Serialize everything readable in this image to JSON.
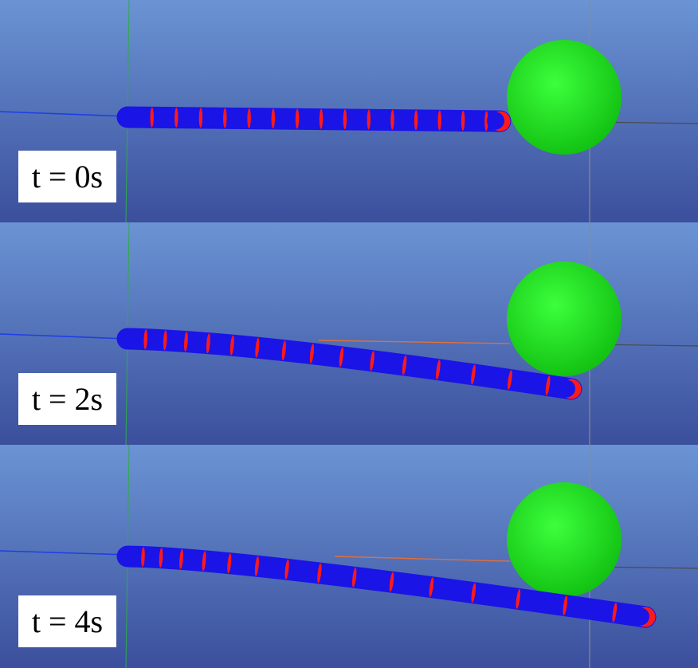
{
  "scene": {
    "background_top": "#6b94d4",
    "background_bottom": "#3b4f9c",
    "rod_color": "#1a14e6",
    "marker_color": "#ff1a1a",
    "sphere_color": "#1ee61e",
    "axis_color": "#8a8a8a",
    "guide_color": "#1e3ee6",
    "contact_line_color": "#e0703a"
  },
  "panels": [
    {
      "label": "t = 0s"
    },
    {
      "label": "t = 2s"
    },
    {
      "label": "t = 4s"
    }
  ]
}
